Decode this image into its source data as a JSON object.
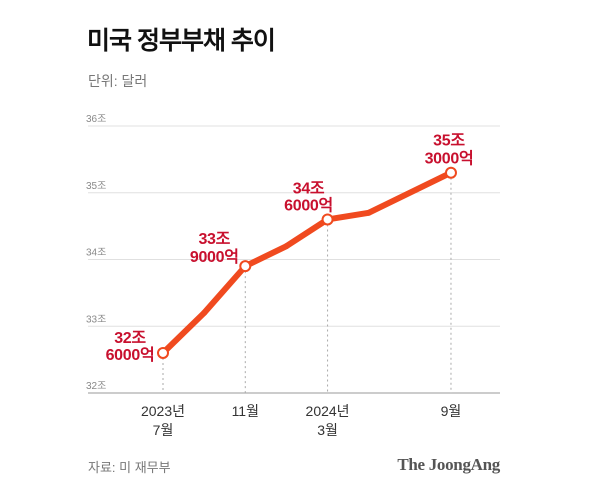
{
  "colors": {
    "line": "#f04a1f",
    "data_label": "#c8102e",
    "grid": "#e0e0e0",
    "axis_line": "#999999",
    "axis_text": "#888888",
    "tick_text": "#333333",
    "dash": "#aaaaaa"
  },
  "source": "자료: 미 재무부",
  "brand_logo": "The JoongAng",
  "chart_data": {
    "type": "line",
    "title": "미국 정부부채 추이",
    "subtitle": "단위: 달러",
    "ylim": [
      32,
      36
    ],
    "grid": true,
    "y_ticks": [
      {
        "value": 36,
        "label": "36조"
      },
      {
        "value": 35,
        "label": "35조"
      },
      {
        "value": 34,
        "label": "34조"
      },
      {
        "value": 33,
        "label": "33조"
      },
      {
        "value": 32,
        "label": "32조"
      }
    ],
    "x_ticks": [
      {
        "x": "2023-07",
        "label": [
          "2023년",
          "7월"
        ]
      },
      {
        "x": "2023-11",
        "label": [
          "11월"
        ]
      },
      {
        "x": "2024-03",
        "label": [
          "2024년",
          "3월"
        ]
      },
      {
        "x": "2024-09",
        "label": [
          "9월"
        ]
      }
    ],
    "series": [
      {
        "points": [
          {
            "x": "2023-07",
            "y": 32.6,
            "marker": true,
            "label": [
              "32조",
              "6000억"
            ]
          },
          {
            "x": "2023-09",
            "y": 33.2
          },
          {
            "x": "2023-11",
            "y": 33.9,
            "marker": true,
            "label": [
              "33조",
              "9000억"
            ]
          },
          {
            "x": "2024-01",
            "y": 34.2
          },
          {
            "x": "2024-03",
            "y": 34.6,
            "marker": true,
            "label": [
              "34조",
              "6000억"
            ]
          },
          {
            "x": "2024-05",
            "y": 34.7
          },
          {
            "x": "2024-09",
            "y": 35.3,
            "marker": true,
            "label": [
              "35조",
              "3000억"
            ]
          }
        ]
      }
    ]
  }
}
